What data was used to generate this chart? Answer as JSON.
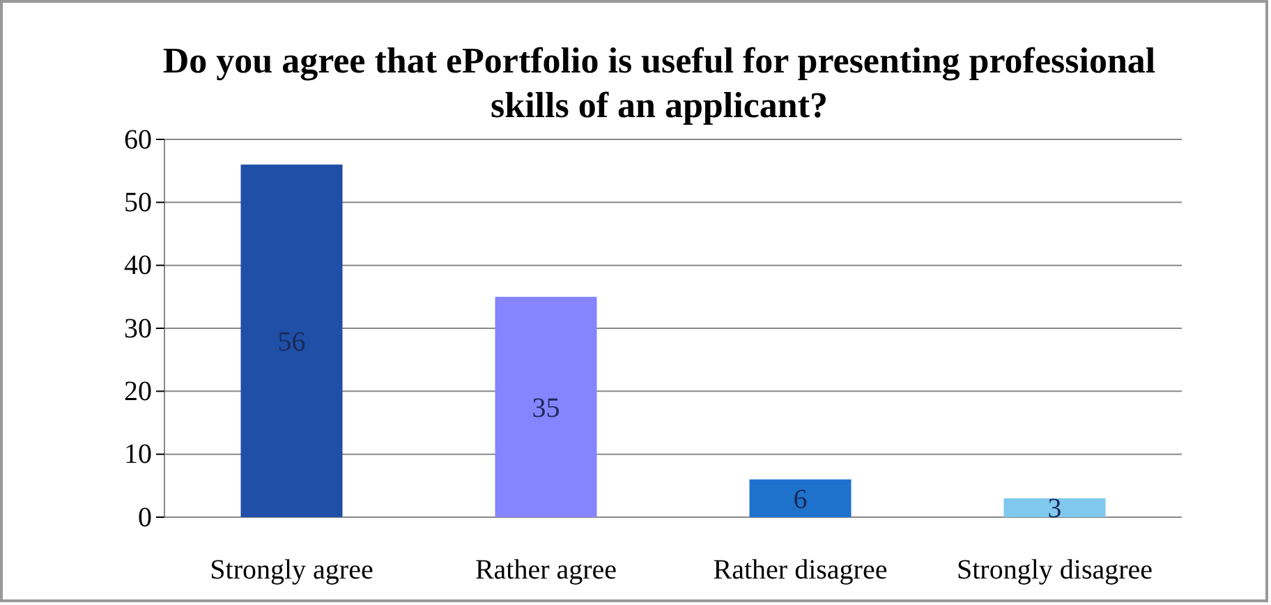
{
  "chart_data": {
    "type": "bar",
    "title": "Do you agree that ePortfolio is useful for presenting professional skills of an applicant?",
    "categories": [
      "Strongly agree",
      "Rather agree",
      "Rather disagree",
      "Strongly disagree"
    ],
    "values": [
      56,
      35,
      6,
      3
    ],
    "colors": [
      "#1f4fa6",
      "#8585ff",
      "#1e72cc",
      "#80c8ee"
    ],
    "ylim": [
      0,
      60
    ],
    "yticks": [
      0,
      10,
      20,
      30,
      40,
      50,
      60
    ],
    "grid": "y",
    "data_labels": true
  }
}
